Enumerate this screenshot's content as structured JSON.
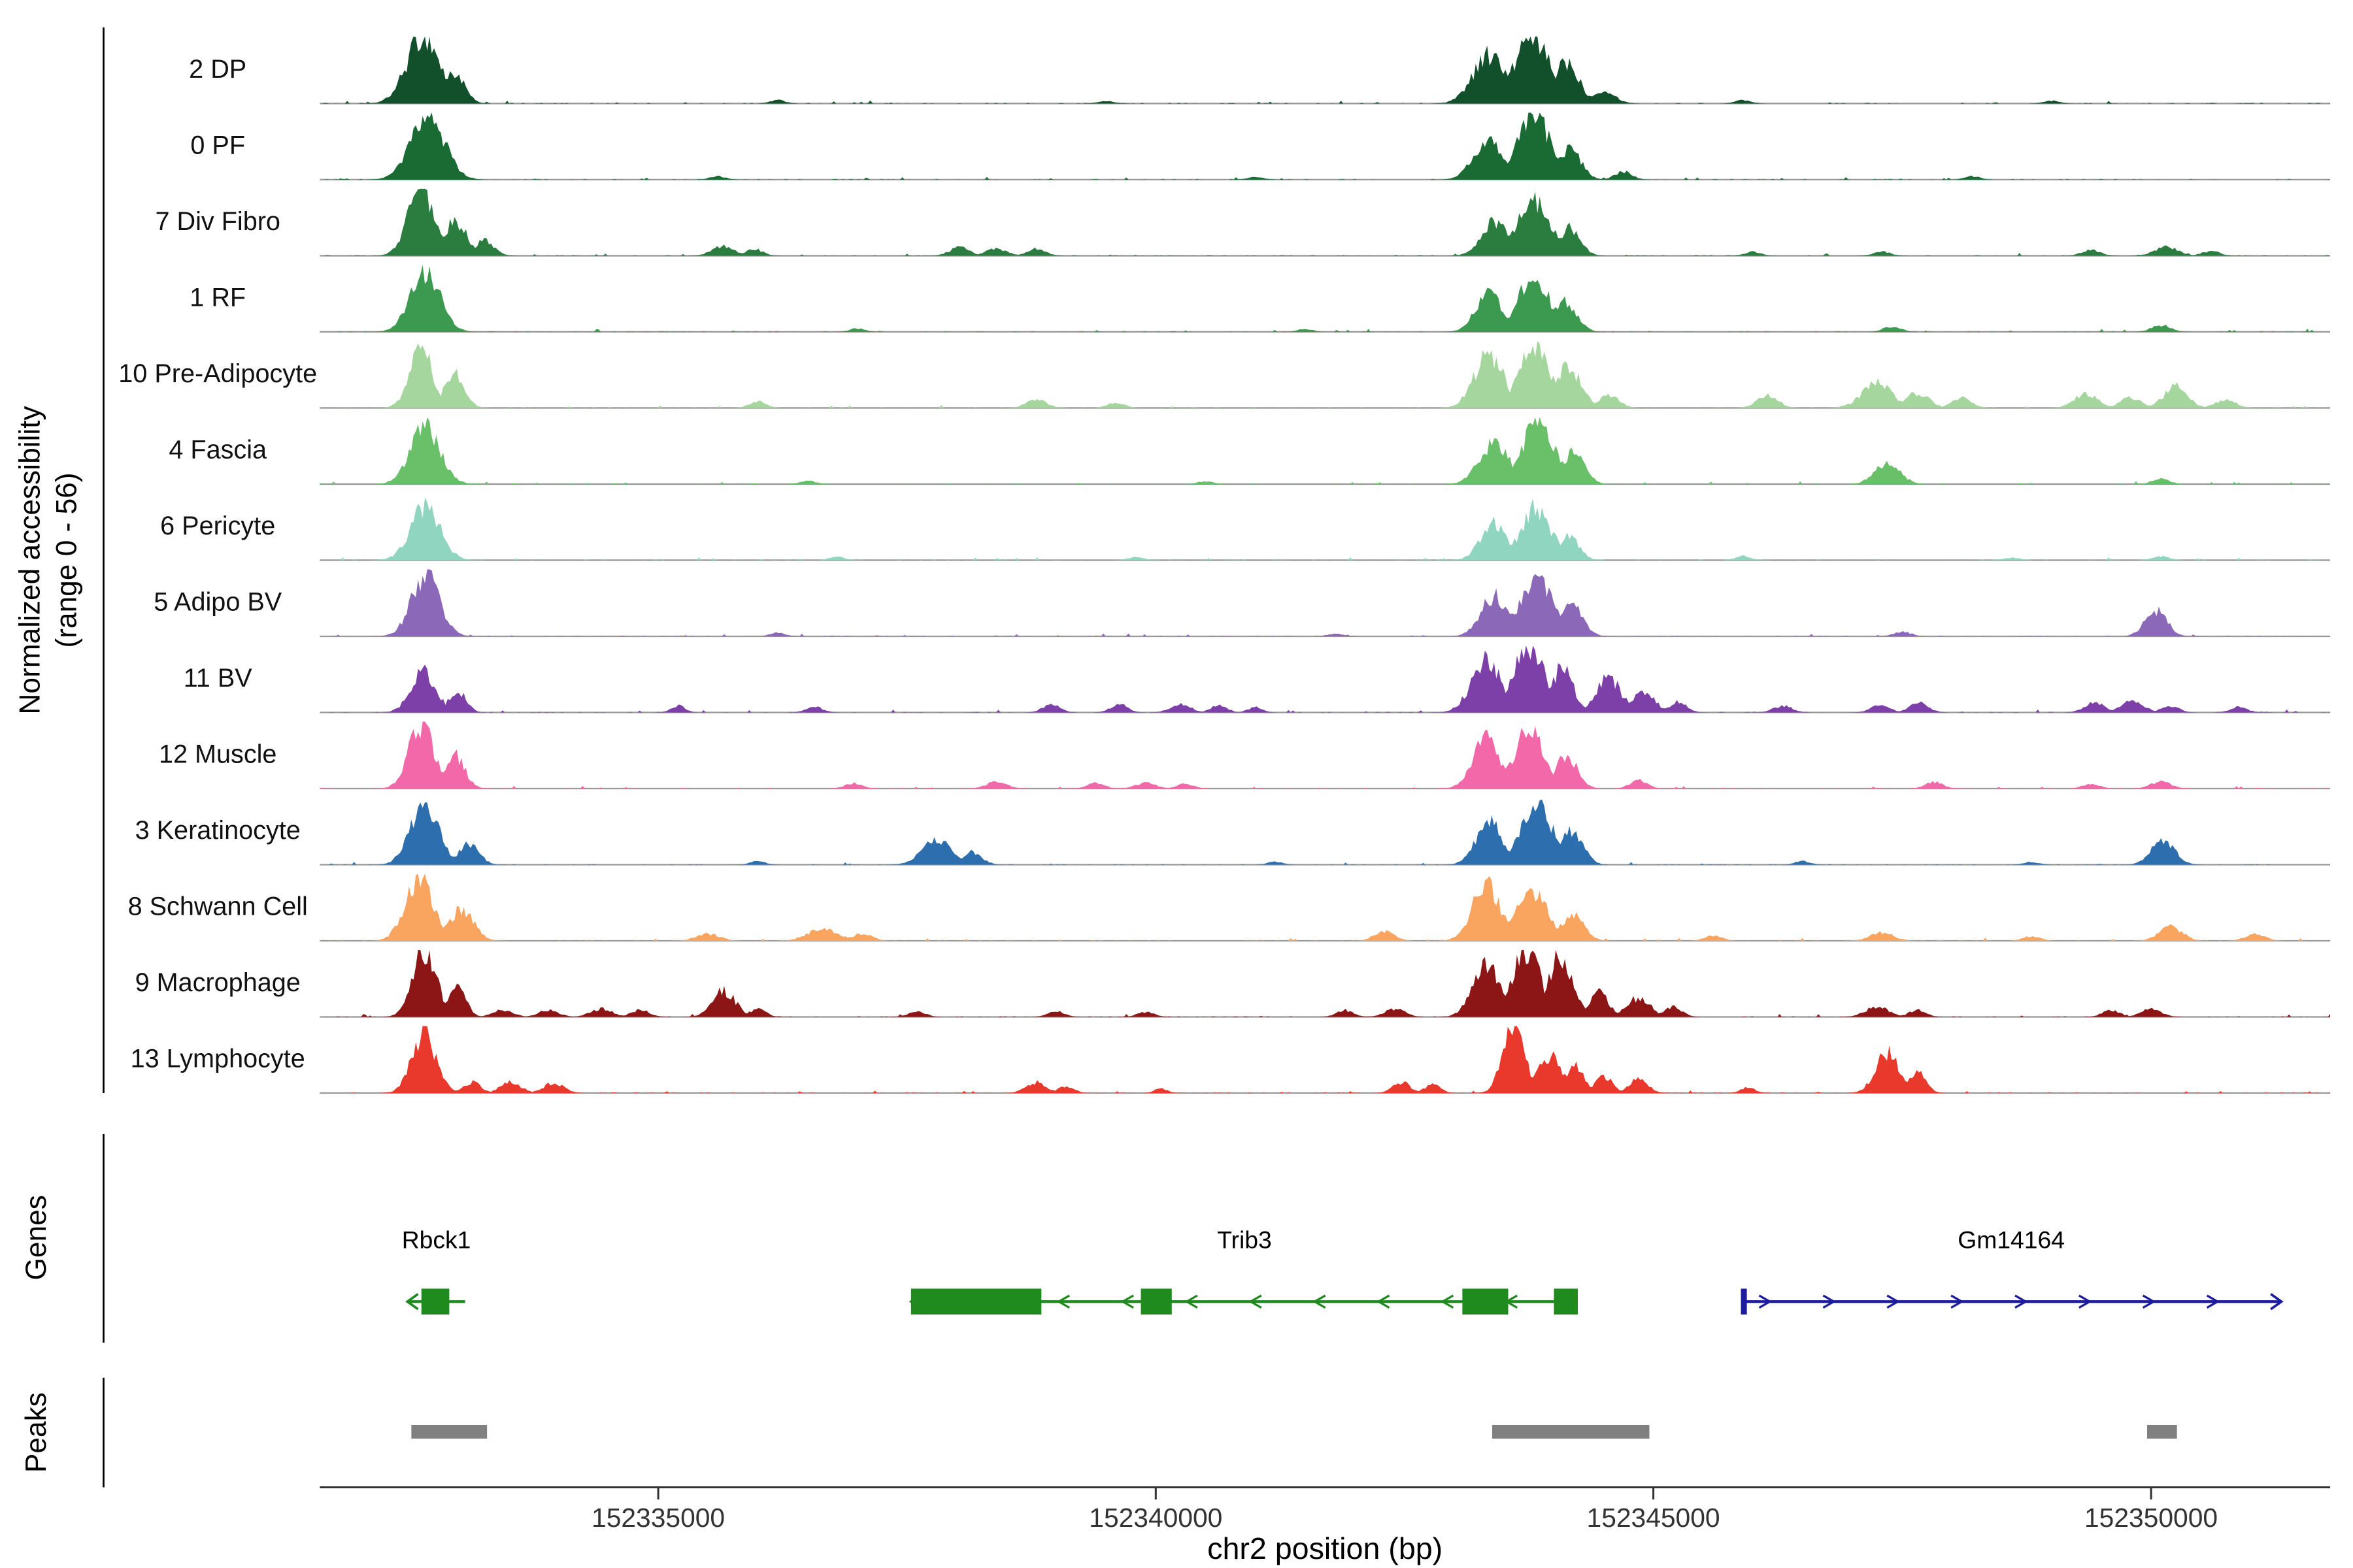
{
  "figure": {
    "y_axis_label_line1": "Normalized accessibility",
    "y_axis_label_line2": "(range 0 - 56)",
    "x_axis_title": "chr2 position (bp)",
    "genes_section_label": "Genes",
    "peaks_section_label": "Peaks",
    "peak_bar_color": "#808080",
    "baseline_color": "#999999"
  },
  "chart_data": {
    "type": "area",
    "title": "",
    "xlabel": "chr2 position (bp)",
    "ylabel": "Normalized accessibility (range 0 - 56)",
    "y_range": [
      0,
      56
    ],
    "x_range_bp": [
      152331600,
      152351800
    ],
    "x_ticks_bp": [
      152335000,
      152340000,
      152345000,
      152350000
    ],
    "tracks": [
      {
        "label": "2 DP",
        "color": "#11502a",
        "peaks": [
          [
            152332640,
            420,
            1.0
          ],
          [
            152332950,
            260,
            0.45
          ],
          [
            152343350,
            420,
            0.72
          ],
          [
            152343780,
            460,
            0.95
          ],
          [
            152344120,
            330,
            0.62
          ],
          [
            152344500,
            280,
            0.2
          ],
          [
            152336200,
            200,
            0.05
          ],
          [
            152339500,
            200,
            0.04
          ],
          [
            152345900,
            200,
            0.05
          ],
          [
            152349000,
            200,
            0.04
          ]
        ]
      },
      {
        "label": "0 PF",
        "color": "#1a6b33",
        "peaks": [
          [
            152332680,
            430,
            0.95
          ],
          [
            152343350,
            380,
            0.6
          ],
          [
            152343800,
            450,
            0.9
          ],
          [
            152344150,
            300,
            0.45
          ],
          [
            152344700,
            220,
            0.12
          ],
          [
            152335600,
            200,
            0.05
          ],
          [
            152341000,
            200,
            0.04
          ],
          [
            152348200,
            200,
            0.05
          ]
        ]
      },
      {
        "label": "7 Div Fibro",
        "color": "#2a7d3f",
        "peaks": [
          [
            152332620,
            340,
            1.0
          ],
          [
            152332960,
            300,
            0.5
          ],
          [
            152333250,
            250,
            0.22
          ],
          [
            152335650,
            280,
            0.14
          ],
          [
            152335960,
            220,
            0.1
          ],
          [
            152338030,
            260,
            0.12
          ],
          [
            152338400,
            280,
            0.1
          ],
          [
            152338800,
            240,
            0.1
          ],
          [
            152343400,
            340,
            0.5
          ],
          [
            152343800,
            420,
            0.78
          ],
          [
            152344150,
            280,
            0.4
          ],
          [
            152346000,
            200,
            0.06
          ],
          [
            152347300,
            220,
            0.06
          ],
          [
            152349400,
            240,
            0.08
          ],
          [
            152350150,
            300,
            0.13
          ],
          [
            152350600,
            220,
            0.07
          ]
        ]
      },
      {
        "label": "1 RF",
        "color": "#3c9a50",
        "peaks": [
          [
            152332660,
            380,
            0.9
          ],
          [
            152343350,
            340,
            0.55
          ],
          [
            152343800,
            400,
            0.82
          ],
          [
            152344120,
            280,
            0.45
          ],
          [
            152337000,
            200,
            0.05
          ],
          [
            152341500,
            200,
            0.04
          ],
          [
            152347400,
            220,
            0.08
          ],
          [
            152350100,
            240,
            0.1
          ]
        ]
      },
      {
        "label": "10 Pre-Adipocyte",
        "color": "#a5d69e",
        "peaks": [
          [
            152332620,
            300,
            0.85
          ],
          [
            152332950,
            260,
            0.5
          ],
          [
            152343350,
            380,
            0.78
          ],
          [
            152343800,
            400,
            0.95
          ],
          [
            152344150,
            320,
            0.6
          ],
          [
            152344550,
            260,
            0.2
          ],
          [
            152336000,
            220,
            0.1
          ],
          [
            152338800,
            260,
            0.12
          ],
          [
            152339600,
            220,
            0.08
          ],
          [
            152346150,
            260,
            0.2
          ],
          [
            152347250,
            380,
            0.38
          ],
          [
            152347650,
            300,
            0.22
          ],
          [
            152348100,
            260,
            0.15
          ],
          [
            152349350,
            300,
            0.22
          ],
          [
            152349800,
            260,
            0.16
          ],
          [
            152350250,
            300,
            0.32
          ],
          [
            152350750,
            260,
            0.12
          ]
        ]
      },
      {
        "label": "4 Fascia",
        "color": "#6abf69",
        "peaks": [
          [
            152332660,
            380,
            0.85
          ],
          [
            152343400,
            380,
            0.6
          ],
          [
            152343850,
            420,
            0.9
          ],
          [
            152344200,
            280,
            0.45
          ],
          [
            152347350,
            320,
            0.32
          ],
          [
            152336500,
            200,
            0.05
          ],
          [
            152340500,
            200,
            0.04
          ],
          [
            152350100,
            220,
            0.08
          ]
        ]
      },
      {
        "label": "6 Pericyte",
        "color": "#8fd5c0",
        "peaks": [
          [
            152332660,
            380,
            0.8
          ],
          [
            152343400,
            340,
            0.55
          ],
          [
            152343820,
            380,
            0.78
          ],
          [
            152344150,
            260,
            0.35
          ],
          [
            152336800,
            200,
            0.05
          ],
          [
            152339800,
            200,
            0.05
          ],
          [
            152345900,
            200,
            0.06
          ],
          [
            152348600,
            200,
            0.04
          ],
          [
            152350100,
            220,
            0.06
          ]
        ]
      },
      {
        "label": "5 Adipo BV",
        "color": "#8b68b8",
        "peaks": [
          [
            152332660,
            360,
            0.9
          ],
          [
            152343400,
            340,
            0.6
          ],
          [
            152343820,
            420,
            0.85
          ],
          [
            152344180,
            280,
            0.5
          ],
          [
            152350050,
            280,
            0.38
          ],
          [
            152336200,
            200,
            0.05
          ],
          [
            152341800,
            200,
            0.04
          ],
          [
            152347500,
            220,
            0.07
          ]
        ]
      },
      {
        "label": "11 BV",
        "color": "#7d3fa8",
        "peaks": [
          [
            152332640,
            320,
            0.6
          ],
          [
            152332980,
            220,
            0.32
          ],
          [
            152343320,
            380,
            0.75
          ],
          [
            152343750,
            380,
            1.0
          ],
          [
            152344080,
            280,
            0.65
          ],
          [
            152344550,
            320,
            0.5
          ],
          [
            152344900,
            280,
            0.32
          ],
          [
            152345250,
            220,
            0.16
          ],
          [
            152335200,
            180,
            0.1
          ],
          [
            152336570,
            220,
            0.08
          ],
          [
            152338950,
            220,
            0.12
          ],
          [
            152339630,
            220,
            0.12
          ],
          [
            152340250,
            260,
            0.12
          ],
          [
            152340630,
            220,
            0.1
          ],
          [
            152341000,
            180,
            0.08
          ],
          [
            152346300,
            240,
            0.1
          ],
          [
            152347280,
            240,
            0.12
          ],
          [
            152347670,
            240,
            0.14
          ],
          [
            152349430,
            260,
            0.14
          ],
          [
            152349810,
            300,
            0.17
          ],
          [
            152350190,
            220,
            0.1
          ],
          [
            152350880,
            220,
            0.08
          ]
        ]
      },
      {
        "label": "12 Muscle",
        "color": "#f268a8",
        "peaks": [
          [
            152332620,
            320,
            0.95
          ],
          [
            152332950,
            260,
            0.5
          ],
          [
            152343320,
            340,
            0.72
          ],
          [
            152343760,
            380,
            0.88
          ],
          [
            152344120,
            280,
            0.5
          ],
          [
            152344850,
            220,
            0.12
          ],
          [
            152336960,
            220,
            0.08
          ],
          [
            152338400,
            260,
            0.1
          ],
          [
            152339400,
            220,
            0.08
          ],
          [
            152339900,
            260,
            0.08
          ],
          [
            152340300,
            220,
            0.07
          ],
          [
            152347820,
            220,
            0.1
          ],
          [
            152349400,
            220,
            0.07
          ],
          [
            152350100,
            260,
            0.1
          ]
        ]
      },
      {
        "label": "3 Keratinocyte",
        "color": "#2d6fae",
        "peaks": [
          [
            152332650,
            360,
            0.9
          ],
          [
            152333100,
            260,
            0.3
          ],
          [
            152337800,
            380,
            0.38
          ],
          [
            152338150,
            260,
            0.18
          ],
          [
            152343350,
            340,
            0.65
          ],
          [
            152343820,
            420,
            0.88
          ],
          [
            152344180,
            280,
            0.5
          ],
          [
            152350120,
            300,
            0.36
          ],
          [
            152336000,
            200,
            0.05
          ],
          [
            152341200,
            200,
            0.04
          ],
          [
            152346500,
            200,
            0.05
          ],
          [
            152348800,
            200,
            0.04
          ]
        ]
      },
      {
        "label": "8 Schwann Cell",
        "color": "#f9a45f",
        "peaks": [
          [
            152332600,
            360,
            0.9
          ],
          [
            152333020,
            320,
            0.45
          ],
          [
            152335500,
            300,
            0.1
          ],
          [
            152336650,
            380,
            0.18
          ],
          [
            152337050,
            260,
            0.1
          ],
          [
            152342300,
            260,
            0.14
          ],
          [
            152343320,
            360,
            0.82
          ],
          [
            152343780,
            400,
            0.75
          ],
          [
            152344180,
            300,
            0.38
          ],
          [
            152345600,
            220,
            0.08
          ],
          [
            152347300,
            300,
            0.12
          ],
          [
            152348800,
            220,
            0.07
          ],
          [
            152350200,
            300,
            0.2
          ],
          [
            152351050,
            260,
            0.1
          ]
        ]
      },
      {
        "label": "9 Macrophage",
        "color": "#8c1515",
        "peaks": [
          [
            152332650,
            300,
            1.0
          ],
          [
            152332980,
            220,
            0.42
          ],
          [
            152333440,
            260,
            0.1
          ],
          [
            152333900,
            260,
            0.1
          ],
          [
            152334430,
            280,
            0.12
          ],
          [
            152334820,
            240,
            0.1
          ],
          [
            152335660,
            300,
            0.38
          ],
          [
            152336000,
            200,
            0.12
          ],
          [
            152337600,
            220,
            0.08
          ],
          [
            152339000,
            220,
            0.08
          ],
          [
            152339900,
            220,
            0.07
          ],
          [
            152341900,
            220,
            0.1
          ],
          [
            152342400,
            260,
            0.12
          ],
          [
            152343320,
            340,
            0.78
          ],
          [
            152343720,
            360,
            1.0
          ],
          [
            152344060,
            320,
            0.88
          ],
          [
            152344450,
            260,
            0.35
          ],
          [
            152344850,
            300,
            0.28
          ],
          [
            152345200,
            220,
            0.15
          ],
          [
            152347250,
            300,
            0.15
          ],
          [
            152347650,
            220,
            0.1
          ],
          [
            152349600,
            220,
            0.1
          ],
          [
            152350000,
            260,
            0.12
          ]
        ]
      },
      {
        "label": "13 Lymphocyte",
        "color": "#e8392c",
        "peaks": [
          [
            152332650,
            320,
            0.85
          ],
          [
            152333130,
            220,
            0.16
          ],
          [
            152333520,
            260,
            0.16
          ],
          [
            152333950,
            260,
            0.15
          ],
          [
            152338800,
            260,
            0.16
          ],
          [
            152339100,
            200,
            0.1
          ],
          [
            152342470,
            220,
            0.16
          ],
          [
            152342780,
            200,
            0.12
          ],
          [
            152343600,
            280,
            1.0
          ],
          [
            152343950,
            300,
            0.55
          ],
          [
            152344200,
            240,
            0.4
          ],
          [
            152344500,
            220,
            0.25
          ],
          [
            152344850,
            240,
            0.22
          ],
          [
            152347350,
            300,
            0.6
          ],
          [
            152347650,
            220,
            0.3
          ],
          [
            152340050,
            160,
            0.07
          ],
          [
            152345950,
            180,
            0.08
          ]
        ]
      }
    ],
    "genes": [
      {
        "name": "Rbck1",
        "strand": "-",
        "color": "#1f8b1f",
        "span_bp": [
          152332480,
          152333060
        ],
        "exons_bp": [
          [
            152332620,
            152332900
          ]
        ]
      },
      {
        "name": "Trib3",
        "strand": "-",
        "color": "#1f8b1f",
        "span_bp": [
          152337540,
          152344240
        ],
        "exons_bp": [
          [
            152337540,
            152338850
          ],
          [
            152339850,
            152340160
          ],
          [
            152343080,
            152343540
          ],
          [
            152344000,
            152344240
          ]
        ]
      },
      {
        "name": "Gm14164",
        "strand": "+",
        "color": "#1c1c9c",
        "span_bp": [
          152345880,
          152351310
        ],
        "exons_bp": [
          [
            152345880,
            152345940
          ]
        ]
      }
    ],
    "peak_regions_bp": [
      [
        152332520,
        152333280
      ],
      [
        152343380,
        152344960
      ],
      [
        152349960,
        152350260
      ]
    ]
  }
}
